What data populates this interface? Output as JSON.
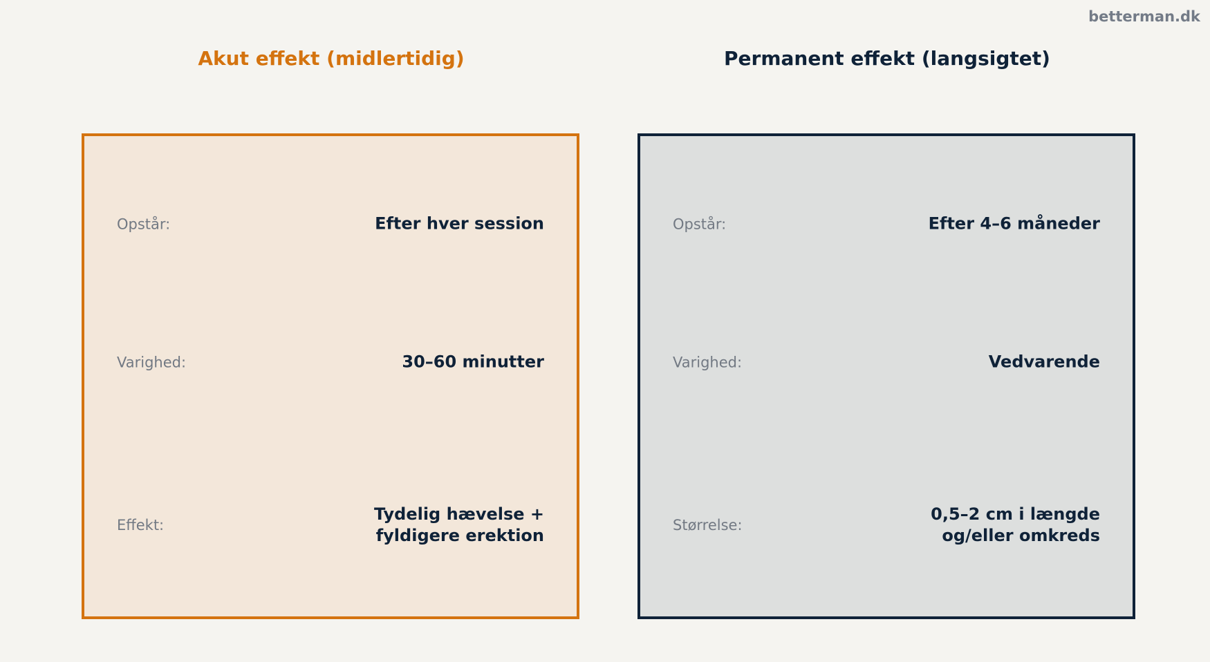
{
  "brand": "betterman.dk",
  "acute": {
    "title": "Akut effekt (midlertidig)",
    "rows": [
      {
        "label": "Opstår:",
        "value": "Efter hver session"
      },
      {
        "label": "Varighed:",
        "value": "30–60 minutter"
      },
      {
        "label": "Effekt:",
        "value": "Tydelig hævelse +\nfyldigere erektion"
      }
    ]
  },
  "permanent": {
    "title": "Permanent effekt (langsigtet)",
    "rows": [
      {
        "label": "Opstår:",
        "value": "Efter 4–6 måneder"
      },
      {
        "label": "Varighed:",
        "value": "Vedvarende"
      },
      {
        "label": "Størrelse:",
        "value": "0,5–2 cm i længde\nog/eller omkreds"
      }
    ]
  },
  "colors": {
    "acute_accent": "#d4730f",
    "permanent_accent": "#0f2238",
    "acute_fill": "#f3e7da",
    "permanent_fill": "#dddfde",
    "label_gray": "#727983",
    "background": "#f5f4f0"
  }
}
